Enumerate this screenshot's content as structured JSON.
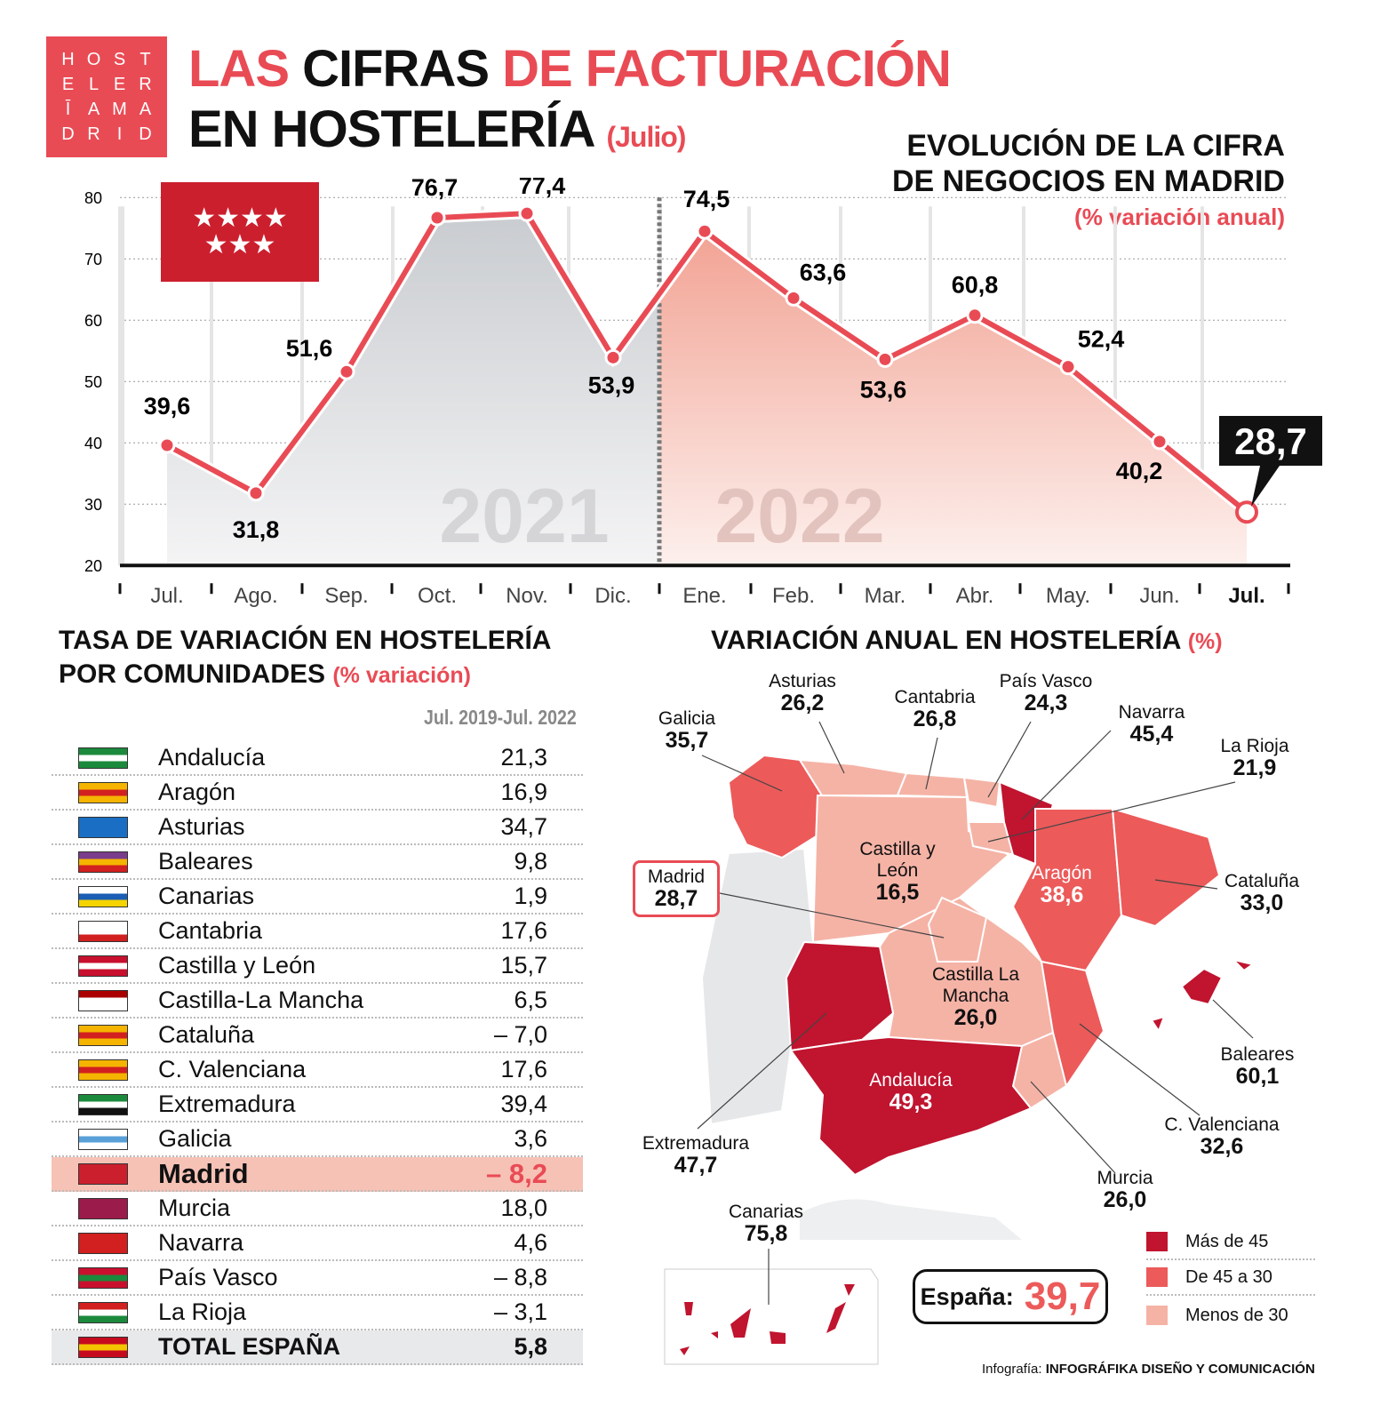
{
  "logo": {
    "letters": [
      "H",
      "O",
      "S",
      "T",
      "E",
      "L",
      "E",
      "R",
      "Ī",
      "A",
      "M",
      "A",
      "D",
      "R",
      "I",
      "D"
    ]
  },
  "header": {
    "title_a": "LAS ",
    "title_b": "CIFRAS ",
    "title_c": "DE FACTURACIÓN",
    "title_d": "EN HOSTELERÍA ",
    "title_sub": "(Julio)"
  },
  "chart_title": {
    "line1": "EVOLUCIÓN DE LA CIFRA",
    "line2": "DE NEGOCIOS EN MADRID",
    "sub": "(% variación anual)"
  },
  "madrid_flag": {
    "stars_top": "★★★★",
    "stars_bottom": "★★★"
  },
  "chart_data": {
    "type": "line",
    "categories": [
      "Jul.",
      "Ago.",
      "Sep.",
      "Oct.",
      "Nov.",
      "Dic.",
      "Ene.",
      "Feb.",
      "Mar.",
      "Abr.",
      "May.",
      "Jun.",
      "Jul."
    ],
    "values": [
      39.6,
      31.8,
      51.6,
      76.7,
      77.4,
      53.9,
      74.5,
      63.6,
      53.6,
      60.8,
      52.4,
      40.2,
      28.7
    ],
    "value_labels": [
      "39,6",
      "31,8",
      "51,6",
      "76,7",
      "77,4",
      "53,9",
      "74,5",
      "63,6",
      "53,6",
      "60,8",
      "52,4",
      "40,2",
      "28,7"
    ],
    "ylim": [
      20,
      80
    ],
    "yticks": [
      "20",
      "30",
      "40",
      "50",
      "60",
      "70",
      "80"
    ],
    "year_labels": [
      "2021",
      "2022"
    ],
    "grid": true,
    "colors": {
      "line": "#e94b55",
      "area_2021": "#c9ccd0",
      "area_2022": "#f2a394"
    }
  },
  "table": {
    "title1": "TASA DE VARIACIÓN EN HOSTELERÍA",
    "title2": "POR COMUNIDADES ",
    "title_sub": "(% variación)",
    "column": "Jul. 2019-Jul. 2022",
    "rows": [
      {
        "name": "Andalucía",
        "value": "21,3"
      },
      {
        "name": "Aragón",
        "value": "16,9"
      },
      {
        "name": "Asturias",
        "value": "34,7"
      },
      {
        "name": "Baleares",
        "value": "9,8"
      },
      {
        "name": "Canarias",
        "value": "1,9"
      },
      {
        "name": "Cantabria",
        "value": "17,6"
      },
      {
        "name": "Castilla y León",
        "value": "15,7"
      },
      {
        "name": "Castilla-La Mancha",
        "value": "6,5"
      },
      {
        "name": "Cataluña",
        "value": "– 7,0"
      },
      {
        "name": "C. Valenciana",
        "value": "17,6"
      },
      {
        "name": "Extremadura",
        "value": "39,4"
      },
      {
        "name": "Galicia",
        "value": "3,6"
      },
      {
        "name": "Madrid",
        "value": "– 8,2"
      },
      {
        "name": "Murcia",
        "value": "18,0"
      },
      {
        "name": "Navarra",
        "value": "4,6"
      },
      {
        "name": "País Vasco",
        "value": "– 8,8"
      },
      {
        "name": "La Rioja",
        "value": "– 3,1"
      },
      {
        "name": "TOTAL ESPAÑA",
        "value": "5,8"
      }
    ]
  },
  "map": {
    "title": "VARIACIÓN ANUAL EN HOSTELERÍA ",
    "title_sub": "(%)",
    "regions": {
      "galicia": {
        "name": "Galicia",
        "value": "35,7"
      },
      "asturias": {
        "name": "Asturias",
        "value": "26,2"
      },
      "cantabria": {
        "name": "Cantabria",
        "value": "26,8"
      },
      "pais_vasco": {
        "name": "País Vasco",
        "value": "24,3"
      },
      "navarra": {
        "name": "Navarra",
        "value": "45,4"
      },
      "la_rioja": {
        "name": "La Rioja",
        "value": "21,9"
      },
      "castilla_leon": {
        "name": "Castilla y León",
        "value": "16,5"
      },
      "aragon": {
        "name": "Aragón",
        "value": "38,6"
      },
      "cataluna": {
        "name": "Cataluña",
        "value": "33,0"
      },
      "madrid": {
        "name": "Madrid",
        "value": "28,7"
      },
      "castilla_mancha": {
        "name": "Castilla La Mancha",
        "value": "26,0"
      },
      "baleares": {
        "name": "Baleares",
        "value": "60,1"
      },
      "extremadura": {
        "name": "Extremadura",
        "value": "47,7"
      },
      "andalucia": {
        "name": "Andalucía",
        "value": "49,3"
      },
      "valenciana": {
        "name": "C. Valenciana",
        "value": "32,6"
      },
      "murcia": {
        "name": "Murcia",
        "value": "26,0"
      },
      "canarias": {
        "name": "Canarias",
        "value": "75,8"
      }
    },
    "espana_label": "España:",
    "espana_value": "39,7",
    "legend": [
      "Más de 45",
      "De 45 a 30",
      "Menos de 30"
    ],
    "colors": {
      "high": "#c0142f",
      "mid": "#ec5a5a",
      "low": "#f5b3a6",
      "portugal": "#e6e7e9"
    }
  },
  "credit": {
    "prefix": "Infografía: ",
    "name": "INFOGRÁFIKA DISEÑO Y COMUNICACIÓN"
  }
}
